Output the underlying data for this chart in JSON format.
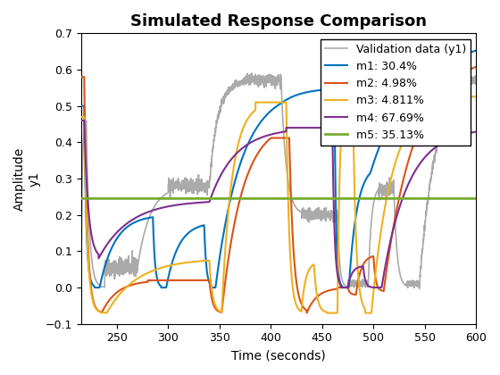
{
  "title": "Simulated Response Comparison",
  "xlabel": "Time (seconds)",
  "ylabel_outer": "Amplitude",
  "ylabel_inner": "y1",
  "xlim": [
    215,
    600
  ],
  "ylim": [
    -0.1,
    0.7
  ],
  "xticks": [
    250,
    300,
    350,
    400,
    450,
    500,
    550,
    600
  ],
  "yticks": [
    -0.1,
    0.0,
    0.1,
    0.2,
    0.3,
    0.4,
    0.5,
    0.6,
    0.7
  ],
  "legend_labels": [
    "Validation data (y1)",
    "m1: 30.4%",
    "m2: 4.98%",
    "m3: 4.811%",
    "m4: 67.69%",
    "m5: 35.13%"
  ],
  "colors": {
    "validation": "#aaaaaa",
    "m1": "#0072bd",
    "m2": "#d95319",
    "m3": "#edb120",
    "m4": "#7e2f8e",
    "m5": "#77ac30"
  },
  "line_widths": {
    "validation": 1.2,
    "m1": 1.5,
    "m2": 1.5,
    "m3": 1.5,
    "m4": 1.5,
    "m5": 2.0
  },
  "m5_constant": 0.245,
  "background_color": "#ffffff",
  "legend_fontsize": 9,
  "title_fontsize": 13,
  "axis_fontsize": 10
}
